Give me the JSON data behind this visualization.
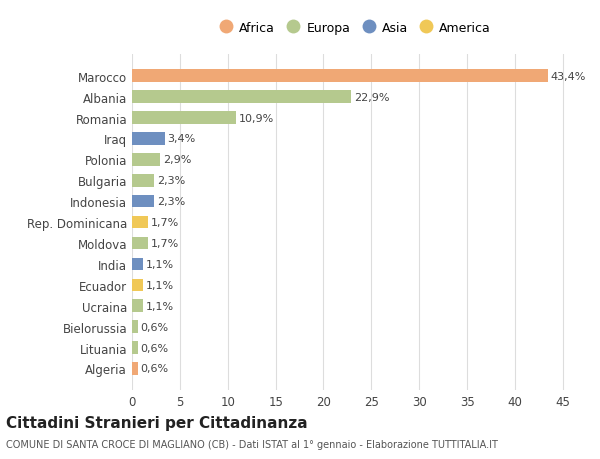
{
  "countries": [
    "Algeria",
    "Lituania",
    "Bielorussia",
    "Ucraina",
    "Ecuador",
    "India",
    "Moldova",
    "Rep. Dominicana",
    "Indonesia",
    "Bulgaria",
    "Polonia",
    "Iraq",
    "Romania",
    "Albania",
    "Marocco"
  ],
  "values": [
    0.6,
    0.6,
    0.6,
    1.1,
    1.1,
    1.1,
    1.7,
    1.7,
    2.3,
    2.3,
    2.9,
    3.4,
    10.9,
    22.9,
    43.4
  ],
  "labels": [
    "0,6%",
    "0,6%",
    "0,6%",
    "1,1%",
    "1,1%",
    "1,1%",
    "1,7%",
    "1,7%",
    "2,3%",
    "2,3%",
    "2,9%",
    "3,4%",
    "10,9%",
    "22,9%",
    "43,4%"
  ],
  "continents": [
    "Africa",
    "Europa",
    "Europa",
    "Europa",
    "America",
    "Asia",
    "Europa",
    "America",
    "Asia",
    "Europa",
    "Europa",
    "Asia",
    "Europa",
    "Europa",
    "Africa"
  ],
  "colors": {
    "Africa": "#F0A875",
    "Europa": "#B5C98E",
    "Asia": "#6E8FC0",
    "America": "#F0C857"
  },
  "legend_order": [
    "Africa",
    "Europa",
    "Asia",
    "America"
  ],
  "title": "Cittadini Stranieri per Cittadinanza",
  "subtitle": "COMUNE DI SANTA CROCE DI MAGLIANO (CB) - Dati ISTAT al 1° gennaio - Elaborazione TUTTITALIA.IT",
  "xlim": [
    0,
    47
  ],
  "xticks": [
    0,
    5,
    10,
    15,
    20,
    25,
    30,
    35,
    40,
    45
  ],
  "bg_color": "#FFFFFF",
  "grid_color": "#DDDDDD",
  "bar_height": 0.6
}
